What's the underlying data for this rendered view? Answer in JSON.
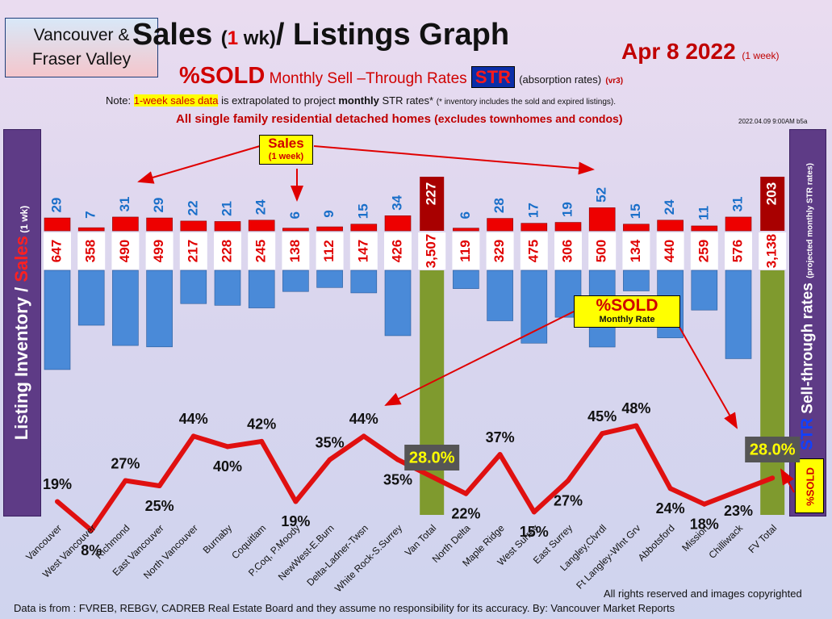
{
  "header": {
    "region_line1": "Vancouver &",
    "region_line2": "Fraser Valley",
    "title_main_a": "Sales ",
    "title_paren_open": "(",
    "title_one": "1",
    "title_wk": " wk)",
    "title_main_b": "/ Listings Graph",
    "date": "Apr 8  2022",
    "date_note": "(1 week)",
    "subtitle_sold": "%SOLD",
    "subtitle_text": "Monthly Sell –Through Rates",
    "subtitle_str": "STR",
    "subtitle_abs": "(absorption rates)",
    "subtitle_ver": "(vr3)",
    "note_prefix": "Note: ",
    "note_highlight": "1-week sales data",
    "note_mid": " is extrapolated to project ",
    "note_bold": "monthly",
    "note_rest": " STR rates* ",
    "note_small": "(* inventory includes the sold and expired listings).",
    "scope_main": "All single family residential detached homes ",
    "scope_paren": "(excludes townhomes and condos)",
    "timestamp": "2022.04.09 9:00AM b5a"
  },
  "side_labels": {
    "left_listing": "Listing Inventory / ",
    "left_sales": "Sales",
    "left_wk": " (1 wk)",
    "right_str": "STR",
    "right_text": " Sell-through rates ",
    "right_small": "(projected monthly STR rates)",
    "sold_tag": "%SOLD"
  },
  "callouts": {
    "sales_a": "Sales",
    "sales_b": "(1 week)",
    "sold_a": "%SOLD",
    "sold_b": "Monthly Rate"
  },
  "footer": {
    "left": "Data is from : FVREB, REBGV, CADREB Real Estate Board and they assume no responsibility for its accuracy. By: Vancouver Market Reports",
    "right": "All rights reserved and  images copyrighted"
  },
  "colors": {
    "sales_bar": "#ee0000",
    "listing_bar": "#4a8ad8",
    "total_bar": "#7f9a2e",
    "total_sales": "#a80000",
    "line": "#e01010",
    "sales_label": "#1a6fc9",
    "listing_label": "#e00000"
  },
  "chart_data": {
    "type": "bar",
    "categories": [
      "Vancouver",
      "West Vancouver",
      "Richmond",
      "East Vancouver",
      "North Vancouver",
      "Burnaby",
      "Coquitlam",
      "P.Coq, P.Moody",
      "NewWest-E.Burn",
      "Delta-Ladner-Twsn",
      "White Rock-S.Surrey",
      "Van Total",
      "North Delta",
      "Maple Ridge",
      "West Surrey",
      "East Surrey",
      "Langley,Clvrdl",
      "Ft Langley-Wlnt Grv",
      "Abbotsford",
      "Mission",
      "Chilliwack",
      "FV Total"
    ],
    "series": [
      {
        "name": "Sales",
        "values": [
          29,
          7,
          31,
          29,
          22,
          21,
          24,
          6,
          9,
          15,
          34,
          227,
          6,
          28,
          17,
          19,
          52,
          15,
          24,
          11,
          31,
          203
        ],
        "labels": [
          "29",
          "7",
          "31",
          "29",
          "22",
          "21",
          "24",
          "6",
          "9",
          "15",
          "34",
          "227",
          "6",
          "28",
          "17",
          "19",
          "52",
          "15",
          "24",
          "11",
          "31",
          "203"
        ]
      },
      {
        "name": "Listing Inventory",
        "values": [
          647,
          358,
          490,
          499,
          217,
          228,
          245,
          138,
          112,
          147,
          426,
          3507,
          119,
          329,
          475,
          306,
          500,
          134,
          440,
          259,
          576,
          3138
        ],
        "labels": [
          "647",
          "358",
          "490",
          "499",
          "217",
          "228",
          "245",
          "138",
          "112",
          "147",
          "426",
          "3,507",
          "119",
          "329",
          "475",
          "306",
          "500",
          "134",
          "440",
          "259",
          "576",
          "3,138"
        ]
      },
      {
        "name": "%SOLD",
        "values": [
          19,
          8,
          27,
          25,
          44,
          40,
          42,
          19,
          35,
          44,
          35,
          28,
          22,
          37,
          15,
          27,
          45,
          48,
          24,
          18,
          23,
          28
        ],
        "labels": [
          "19%",
          "8%",
          "27%",
          "25%",
          "44%",
          "40%",
          "42%",
          "19%",
          "35%",
          "44%",
          "35%",
          "28.0%",
          "22%",
          "37%",
          "15%",
          "27%",
          "45%",
          "48%",
          "24%",
          "18%",
          "23%",
          "28.0%"
        ]
      }
    ],
    "totals": [
      "Van Total",
      "FV Total"
    ]
  }
}
